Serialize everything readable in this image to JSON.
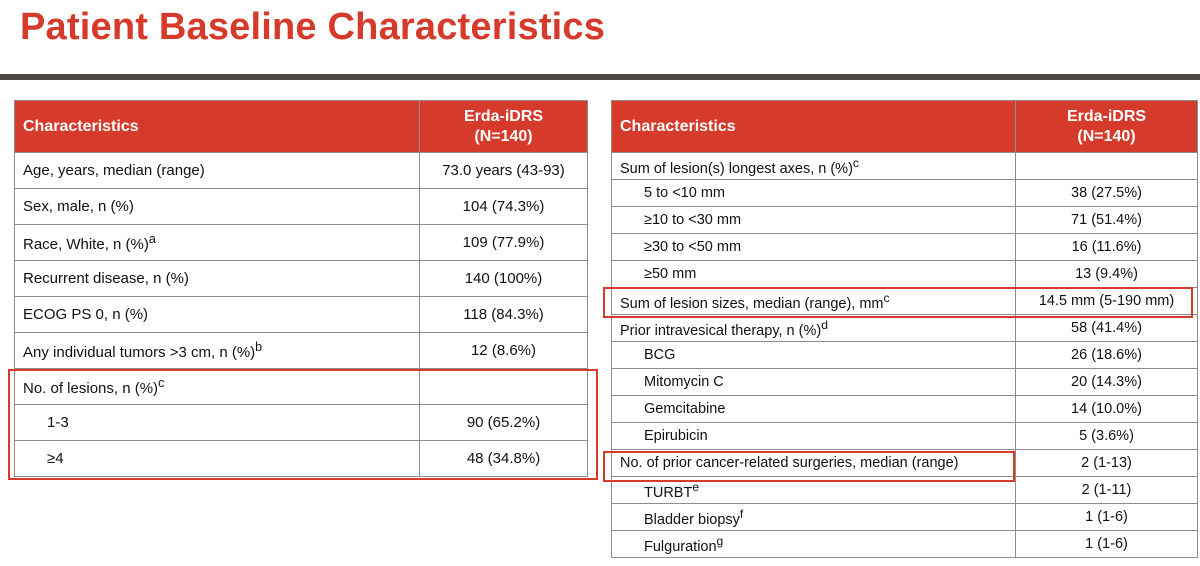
{
  "title": "Patient Baseline Characteristics",
  "colors": {
    "accent": "#d63a2a",
    "rule": "#4d4746",
    "border": "#8d8d8d"
  },
  "left_table": {
    "header": {
      "col1": "Characteristics",
      "col2_line1": "Erda-iDRS",
      "col2_line2": "(N=140)"
    },
    "rows": [
      {
        "label": "Age, years, median (range)",
        "value": "73.0 years (43-93)"
      },
      {
        "label": "Sex, male, n (%)",
        "value": "104 (74.3%)"
      },
      {
        "label": "Race, White, n (%)",
        "sup": "a",
        "value": "109 (77.9%)"
      },
      {
        "label": "Recurrent disease, n (%)",
        "value": "140 (100%)"
      },
      {
        "label": "ECOG PS 0, n (%)",
        "value": "118 (84.3%)"
      },
      {
        "label": "Any individual tumors >3 cm, n (%)",
        "sup": "b",
        "value": "12 (8.6%)"
      },
      {
        "label": "No. of lesions, n (%)",
        "sup": "c",
        "value": ""
      },
      {
        "label": "1-3",
        "value": "90 (65.2%)"
      },
      {
        "label": "≥4",
        "value": "48 (34.8%)"
      }
    ]
  },
  "right_table": {
    "header": {
      "col1": "Characteristics",
      "col2_line1": "Erda-iDRS",
      "col2_line2": "(N=140)"
    },
    "rows": [
      {
        "label": "Sum of lesion(s) longest axes, n (%)",
        "sup": "c",
        "value": ""
      },
      {
        "label": "5 to <10 mm",
        "value": "38 (27.5%)"
      },
      {
        "label": "≥10 to <30 mm",
        "value": "71 (51.4%)"
      },
      {
        "label": "≥30 to <50 mm",
        "value": "16 (11.6%)"
      },
      {
        "label": "≥50 mm",
        "value": "13 (9.4%)"
      },
      {
        "label": "Sum of lesion sizes, median (range), mm",
        "sup": "c",
        "value": "14.5 mm (5-190 mm)"
      },
      {
        "label": "Prior intravesical therapy, n (%)",
        "sup": "d",
        "value": "58 (41.4%)"
      },
      {
        "label": "BCG",
        "value": "26 (18.6%)"
      },
      {
        "label": "Mitomycin C",
        "value": "20 (14.3%)"
      },
      {
        "label": "Gemcitabine",
        "value": "14 (10.0%)"
      },
      {
        "label": "Epirubicin",
        "value": "5 (3.6%)"
      },
      {
        "label": "No. of prior cancer-related surgeries, median (range)",
        "value": "2 (1-13)"
      },
      {
        "label": "TURBT",
        "sup": "e",
        "value": "2 (1-11)"
      },
      {
        "label": "Bladder biopsy",
        "sup": "f",
        "value": "1 (1-6)"
      },
      {
        "label": "Fulguration",
        "sup": "g",
        "value": "1 (1-6)"
      }
    ]
  }
}
